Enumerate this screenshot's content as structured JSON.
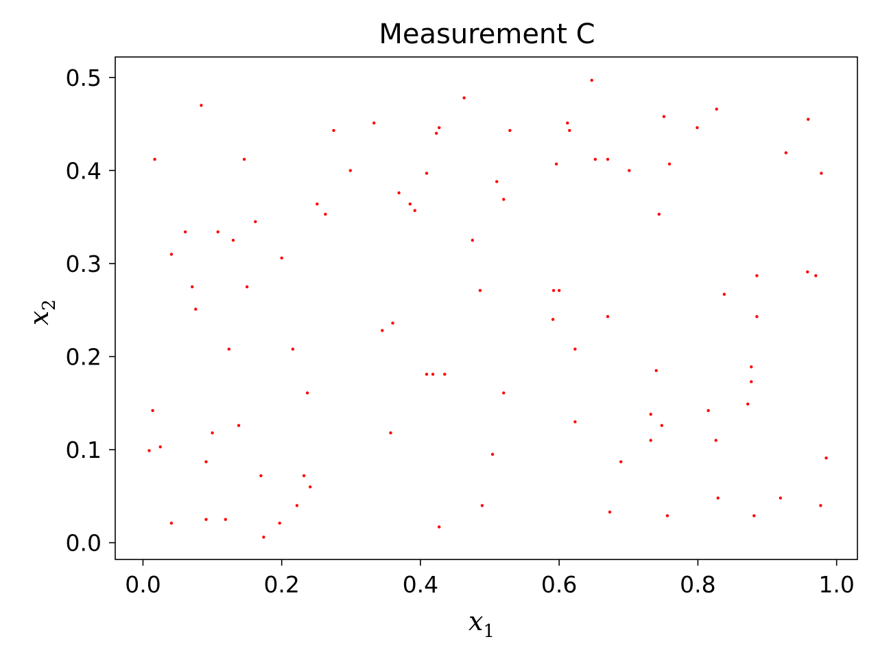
{
  "chart_data": {
    "type": "scatter",
    "title": "Measurement C",
    "xlabel": {
      "base": "x",
      "sub": "1"
    },
    "ylabel": {
      "base": "x",
      "sub": "2"
    },
    "xlim": [
      -0.04,
      1.03
    ],
    "ylim": [
      -0.018,
      0.522
    ],
    "xticks": [
      0.0,
      0.2,
      0.4,
      0.6,
      0.8,
      1.0
    ],
    "yticks": [
      0.0,
      0.1,
      0.2,
      0.3,
      0.4,
      0.5
    ],
    "xtick_labels": [
      "0.0",
      "0.2",
      "0.4",
      "0.6",
      "0.8",
      "1.0"
    ],
    "ytick_labels": [
      "0.0",
      "0.1",
      "0.2",
      "0.3",
      "0.4",
      "0.5"
    ],
    "grid": false,
    "marker_color": "#ff0000",
    "points": [
      [
        0.084,
        0.47
      ],
      [
        0.017,
        0.412
      ],
      [
        0.146,
        0.412
      ],
      [
        0.275,
        0.443
      ],
      [
        0.299,
        0.4
      ],
      [
        0.333,
        0.451
      ],
      [
        0.427,
        0.446
      ],
      [
        0.423,
        0.44
      ],
      [
        0.463,
        0.478
      ],
      [
        0.529,
        0.443
      ],
      [
        0.647,
        0.497
      ],
      [
        0.612,
        0.451
      ],
      [
        0.615,
        0.443
      ],
      [
        0.751,
        0.458
      ],
      [
        0.827,
        0.466
      ],
      [
        0.799,
        0.446
      ],
      [
        0.959,
        0.455
      ],
      [
        0.927,
        0.419
      ],
      [
        0.978,
        0.397
      ],
      [
        0.409,
        0.397
      ],
      [
        0.51,
        0.388
      ],
      [
        0.596,
        0.407
      ],
      [
        0.652,
        0.412
      ],
      [
        0.67,
        0.412
      ],
      [
        0.701,
        0.4
      ],
      [
        0.759,
        0.407
      ],
      [
        0.369,
        0.376
      ],
      [
        0.385,
        0.364
      ],
      [
        0.392,
        0.357
      ],
      [
        0.251,
        0.364
      ],
      [
        0.263,
        0.353
      ],
      [
        0.52,
        0.369
      ],
      [
        0.744,
        0.353
      ],
      [
        0.061,
        0.334
      ],
      [
        0.108,
        0.334
      ],
      [
        0.13,
        0.325
      ],
      [
        0.162,
        0.345
      ],
      [
        0.475,
        0.325
      ],
      [
        0.041,
        0.31
      ],
      [
        0.2,
        0.306
      ],
      [
        0.071,
        0.275
      ],
      [
        0.15,
        0.275
      ],
      [
        0.486,
        0.271
      ],
      [
        0.592,
        0.271
      ],
      [
        0.6,
        0.271
      ],
      [
        0.885,
        0.287
      ],
      [
        0.958,
        0.291
      ],
      [
        0.97,
        0.287
      ],
      [
        0.076,
        0.251
      ],
      [
        0.838,
        0.267
      ],
      [
        0.36,
        0.236
      ],
      [
        0.345,
        0.228
      ],
      [
        0.591,
        0.24
      ],
      [
        0.67,
        0.243
      ],
      [
        0.885,
        0.243
      ],
      [
        0.124,
        0.208
      ],
      [
        0.216,
        0.208
      ],
      [
        0.623,
        0.208
      ],
      [
        0.409,
        0.181
      ],
      [
        0.418,
        0.181
      ],
      [
        0.435,
        0.181
      ],
      [
        0.74,
        0.185
      ],
      [
        0.877,
        0.189
      ],
      [
        0.877,
        0.173
      ],
      [
        0.237,
        0.161
      ],
      [
        0.52,
        0.161
      ],
      [
        0.872,
        0.149
      ],
      [
        0.014,
        0.142
      ],
      [
        0.815,
        0.142
      ],
      [
        0.732,
        0.138
      ],
      [
        0.623,
        0.13
      ],
      [
        0.138,
        0.126
      ],
      [
        0.748,
        0.126
      ],
      [
        0.1,
        0.118
      ],
      [
        0.357,
        0.118
      ],
      [
        0.732,
        0.11
      ],
      [
        0.826,
        0.11
      ],
      [
        0.009,
        0.099
      ],
      [
        0.025,
        0.103
      ],
      [
        0.091,
        0.087
      ],
      [
        0.504,
        0.095
      ],
      [
        0.689,
        0.087
      ],
      [
        0.985,
        0.091
      ],
      [
        0.17,
        0.072
      ],
      [
        0.232,
        0.072
      ],
      [
        0.241,
        0.06
      ],
      [
        0.222,
        0.04
      ],
      [
        0.489,
        0.04
      ],
      [
        0.829,
        0.048
      ],
      [
        0.919,
        0.048
      ],
      [
        0.977,
        0.04
      ],
      [
        0.041,
        0.021
      ],
      [
        0.091,
        0.025
      ],
      [
        0.119,
        0.025
      ],
      [
        0.197,
        0.021
      ],
      [
        0.174,
        0.006
      ],
      [
        0.427,
        0.017
      ],
      [
        0.673,
        0.033
      ],
      [
        0.756,
        0.029
      ],
      [
        0.881,
        0.029
      ]
    ]
  }
}
